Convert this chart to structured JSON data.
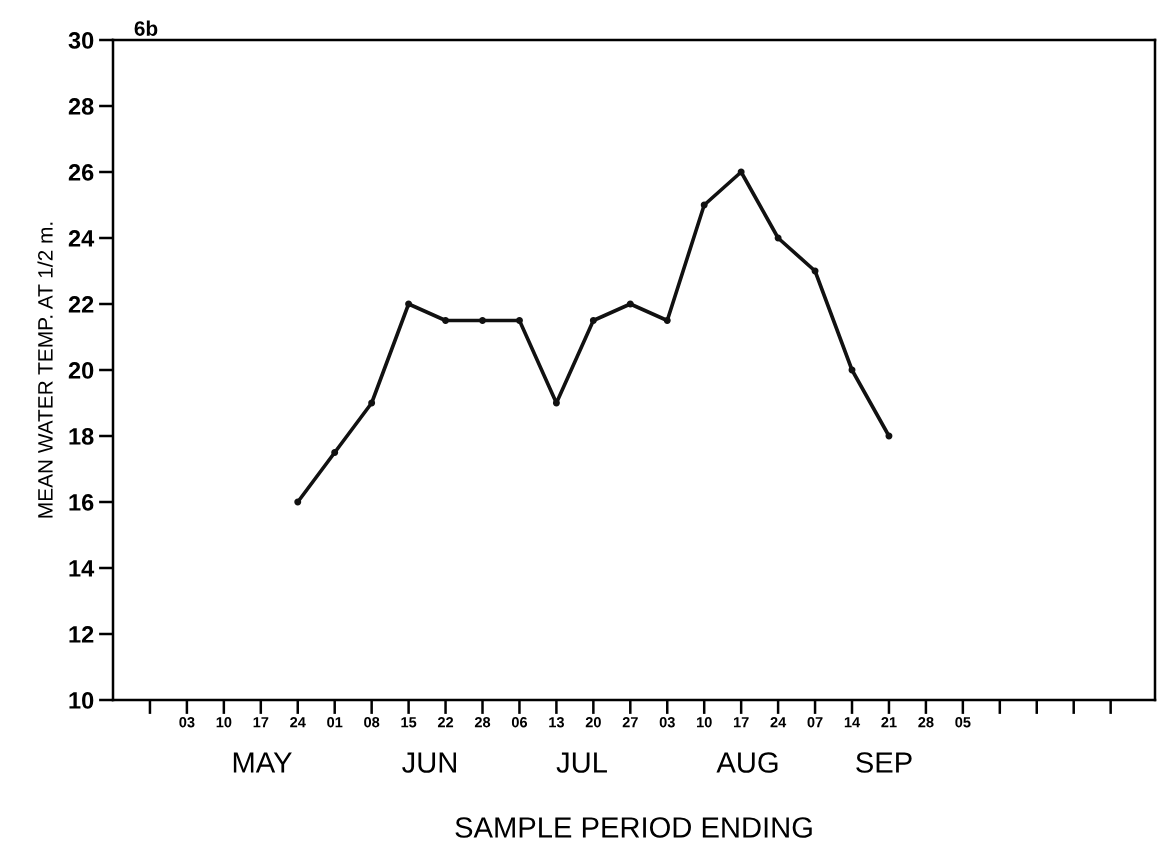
{
  "chart_data": {
    "type": "line",
    "title": "6b",
    "xlabel": "SAMPLE PERIOD ENDING",
    "ylabel": "MEAN WATER TEMP. AT 1/2 m.",
    "categories": [
      null,
      "03",
      "10",
      "17",
      "24",
      "01",
      "08",
      "15",
      "22",
      "28",
      "06",
      "13",
      "20",
      "27",
      "03",
      "10",
      "17",
      "24",
      "07",
      "14",
      "21",
      "28",
      "05",
      null,
      null,
      null,
      null
    ],
    "series": [
      {
        "color": "#111111",
        "values": [
          null,
          null,
          null,
          null,
          16,
          17.5,
          19,
          22,
          21.5,
          21.5,
          21.5,
          19,
          21.5,
          22,
          21.5,
          25,
          26,
          24,
          23,
          20,
          18,
          null,
          null,
          null,
          null,
          null,
          null
        ]
      }
    ],
    "ylim": [
      10,
      30
    ],
    "yticks": [
      10,
      12,
      14,
      16,
      18,
      20,
      22,
      24,
      26,
      28,
      30
    ],
    "grid": false,
    "legend": false,
    "marker": "circle",
    "line_style": "solid",
    "annotations": [
      "MAY",
      "JUN",
      "JUL",
      "AUG",
      "SEP"
    ]
  }
}
